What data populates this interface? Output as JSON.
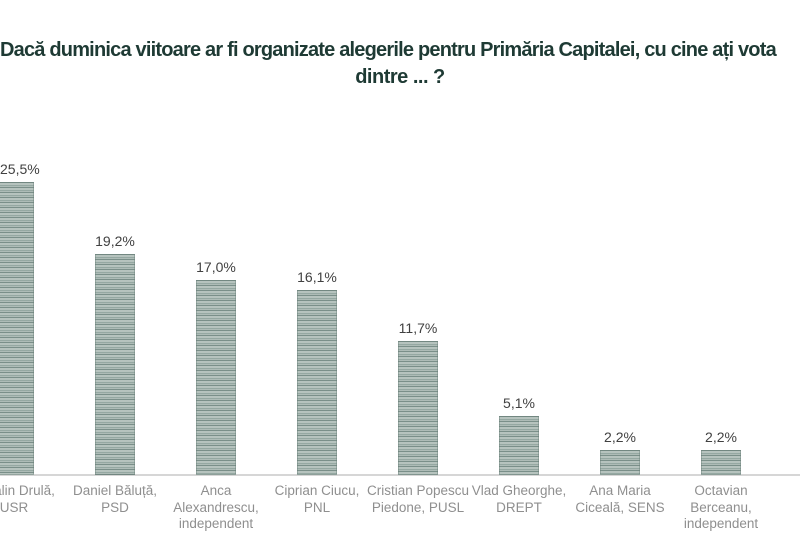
{
  "chart": {
    "title_line1": "Dacă duminica viitoare ar fi organizate alegerile pentru Primăria Capitalei, cu cine ați vota",
    "title_line2": "dintre ... ?",
    "bars": [
      {
        "label": "Cătălin Drulă, USR",
        "value_label": "25,5%"
      },
      {
        "label": "Daniel Băluță, PSD",
        "value_label": "19,2%"
      },
      {
        "label": "Anca Alexandrescu, independent",
        "value_label": "17,0%"
      },
      {
        "label": "Ciprian Ciucu, PNL",
        "value_label": "16,1%"
      },
      {
        "label": "Cristian Popescu Piedone, PUSL",
        "value_label": "11,7%"
      },
      {
        "label": "Vlad Gheorghe, DREPT",
        "value_label": "5,1%"
      },
      {
        "label": "Ana Maria Ciceală, SENS",
        "value_label": "2,2%"
      },
      {
        "label": "Octavian Berceanu, independent",
        "value_label": "2,2%"
      }
    ],
    "colors": {
      "title": "#1e3a34",
      "value_label": "#414141",
      "category_label": "#8f8f8f",
      "axis_line": "#d6d6d6",
      "bar_dark": "#7a8f89",
      "bar_mid": "#95a8a2",
      "bar_light": "#b6c3be",
      "bar_light2": "#aebcb7"
    }
  },
  "chart_data": {
    "type": "bar",
    "title": "Dacă duminica viitoare ar fi organizate alegerile pentru Primăria Capitalei, cu cine ați vota dintre ... ?",
    "categories": [
      "Cătălin Drulă, USR",
      "Daniel Băluță, PSD",
      "Anca Alexandrescu, independent",
      "Ciprian Ciucu, PNL",
      "Cristian Popescu Piedone, PUSL",
      "Vlad Gheorghe, DREPT",
      "Ana Maria Ciceală, SENS",
      "Octavian Berceanu, independent"
    ],
    "values": [
      25.5,
      19.2,
      17.0,
      16.1,
      11.7,
      5.1,
      2.2,
      2.2
    ],
    "value_labels": [
      "25,5%",
      "19,2%",
      "17,0%",
      "16,1%",
      "11,7%",
      "5,1%",
      "2,2%",
      "2,2%"
    ],
    "xlabel": "",
    "ylabel": "",
    "ylim": [
      0,
      28
    ],
    "value_format": "percent-comma-decimal",
    "grid": false,
    "legend": false,
    "bar_texture": "horizontal-stripes"
  }
}
